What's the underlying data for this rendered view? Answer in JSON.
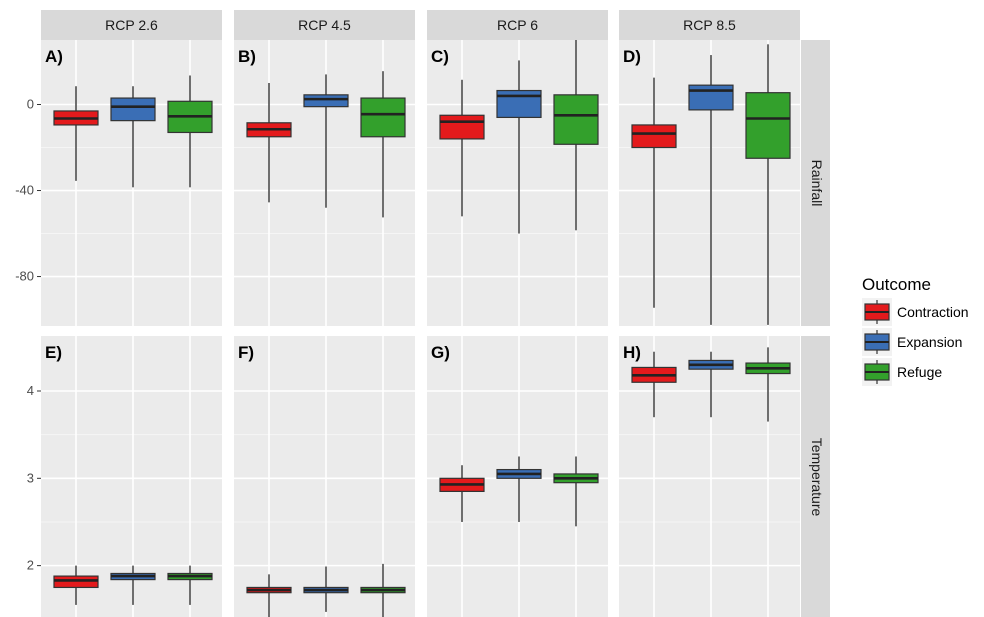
{
  "chart_data": {
    "type": "boxplot",
    "columns": [
      "RCP 2.6",
      "RCP 4.5",
      "RCP 6",
      "RCP 8.5"
    ],
    "rows": [
      "Rainfall",
      "Temperature"
    ],
    "panel_tags": [
      [
        "A)",
        "B)",
        "C)",
        "D)"
      ],
      [
        "E)",
        "F)",
        "G)",
        "H)"
      ]
    ],
    "y_axes": [
      {
        "row": "Rainfall",
        "ylim": [
          -103,
          30
        ],
        "ticks": [
          0,
          -40,
          -80
        ],
        "tick_labels": [
          "0",
          "-40",
          "-80"
        ]
      },
      {
        "row": "Temperature",
        "ylim": [
          1.4,
          4.63
        ],
        "ticks": [
          4,
          3,
          2
        ],
        "tick_labels": [
          "4",
          "3",
          "2"
        ]
      }
    ],
    "grid": true,
    "legend": {
      "title": "Outcome",
      "placement": "right",
      "items": [
        {
          "label": "Contraction",
          "color": "#e31a1c"
        },
        {
          "label": "Expansion",
          "color": "#3a6eb5"
        },
        {
          "label": "Refuge",
          "color": "#33a02c"
        }
      ]
    },
    "series": [
      {
        "name": "Contraction",
        "color": "#e31a1c"
      },
      {
        "name": "Expansion",
        "color": "#3a6eb5"
      },
      {
        "name": "Refuge",
        "color": "#33a02c"
      }
    ],
    "boxes": [
      [
        [
          {
            "min": -35.5,
            "q1": -9.5,
            "median": -6.5,
            "q3": -3,
            "max": 8.5
          },
          {
            "min": -38.5,
            "q1": -7.5,
            "median": -1,
            "q3": 3,
            "max": 8.5
          },
          {
            "min": -38.5,
            "q1": -13,
            "median": -5.5,
            "q3": 1.5,
            "max": 13.5
          }
        ],
        [
          {
            "min": -45.5,
            "q1": -15,
            "median": -11.5,
            "q3": -8.5,
            "max": 10
          },
          {
            "min": -48,
            "q1": -1,
            "median": 2.5,
            "q3": 4.5,
            "max": 14
          },
          {
            "min": -52.5,
            "q1": -15,
            "median": -4.5,
            "q3": 3,
            "max": 15.5
          }
        ],
        [
          {
            "min": -52,
            "q1": -16,
            "median": -8,
            "q3": -5,
            "max": 11.5
          },
          {
            "min": -60,
            "q1": -6,
            "median": 4,
            "q3": 6.5,
            "max": 20.5
          },
          {
            "min": -58.5,
            "q1": -18.5,
            "median": -5,
            "q3": 4.5,
            "max": 30
          }
        ],
        [
          {
            "min": -94.5,
            "q1": -20,
            "median": -13.5,
            "q3": -9.5,
            "max": 12.5
          },
          {
            "min": -102.5,
            "q1": -2.5,
            "median": 6.5,
            "q3": 9,
            "max": 23
          },
          {
            "min": -102.5,
            "q1": -25,
            "median": -6.5,
            "q3": 5.5,
            "max": 28
          }
        ]
      ],
      [
        [
          {
            "min": 1.55,
            "q1": 1.75,
            "median": 1.83,
            "q3": 1.88,
            "max": 2.0
          },
          {
            "min": 1.55,
            "q1": 1.84,
            "median": 1.88,
            "q3": 1.91,
            "max": 2.0
          },
          {
            "min": 1.55,
            "q1": 1.84,
            "median": 1.88,
            "q3": 1.91,
            "max": 2.0
          }
        ],
        [
          {
            "min": 1.4,
            "q1": 1.69,
            "median": 1.72,
            "q3": 1.75,
            "max": 1.9
          },
          {
            "min": 1.47,
            "q1": 1.69,
            "median": 1.72,
            "q3": 1.75,
            "max": 1.99
          },
          {
            "min": 1.4,
            "q1": 1.69,
            "median": 1.72,
            "q3": 1.75,
            "max": 2.02
          }
        ],
        [
          {
            "min": 2.5,
            "q1": 2.85,
            "median": 2.93,
            "q3": 3.0,
            "max": 3.15
          },
          {
            "min": 2.5,
            "q1": 3.0,
            "median": 3.05,
            "q3": 3.1,
            "max": 3.25
          },
          {
            "min": 2.45,
            "q1": 2.95,
            "median": 3.0,
            "q3": 3.05,
            "max": 3.25
          }
        ],
        [
          {
            "min": 3.7,
            "q1": 4.1,
            "median": 4.18,
            "q3": 4.27,
            "max": 4.45
          },
          {
            "min": 3.7,
            "q1": 4.25,
            "median": 4.3,
            "q3": 4.35,
            "max": 4.45
          },
          {
            "min": 3.65,
            "q1": 4.2,
            "median": 4.26,
            "q3": 4.32,
            "max": 4.5
          }
        ]
      ]
    ]
  }
}
